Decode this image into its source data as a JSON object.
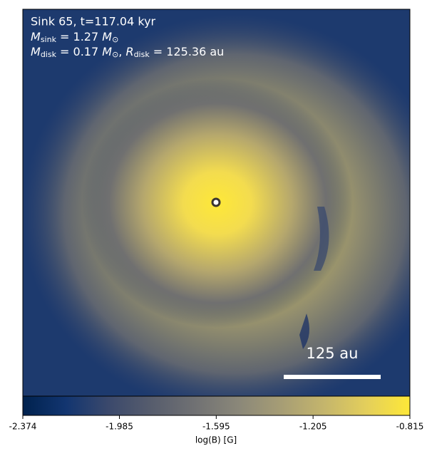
{
  "chart_data": {
    "type": "image",
    "annotations": [
      {
        "text": "Sink 65, t=117.04 kyr"
      },
      {
        "parts": [
          {
            "symbol": "M",
            "subscript": "sink"
          },
          {
            "text": " = 1.27 "
          },
          {
            "symbol": "M",
            "subscript": "⊙"
          }
        ]
      },
      {
        "parts": [
          {
            "symbol": "M",
            "subscript": "disk"
          },
          {
            "text": " = 0.17 "
          },
          {
            "symbol": "M",
            "subscript": "⊙"
          },
          {
            "text": ", "
          },
          {
            "symbol": "R",
            "subscript": "disk"
          },
          {
            "text": " = 125.36 au"
          }
        ]
      }
    ],
    "scale_bar": "125 au",
    "colormap": "cividis",
    "colorbar": {
      "label": "log(B) [G]",
      "clim": [
        -2.374,
        -0.815
      ],
      "ticks": [
        -2.374,
        -1.985,
        -1.595,
        -1.205,
        -0.815
      ]
    }
  }
}
